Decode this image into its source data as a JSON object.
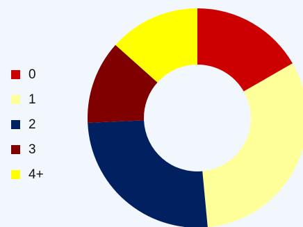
{
  "chart_data": {
    "type": "pie",
    "style": "donut",
    "title": "",
    "legend_position": "left",
    "categories": [
      "0",
      "1",
      "2",
      "3",
      "4+"
    ],
    "values": [
      16.7,
      31.8,
      25.8,
      12.3,
      13.4
    ],
    "colors": [
      "#cc0000",
      "#ffff99",
      "#002060",
      "#800000",
      "#ffff00"
    ]
  }
}
